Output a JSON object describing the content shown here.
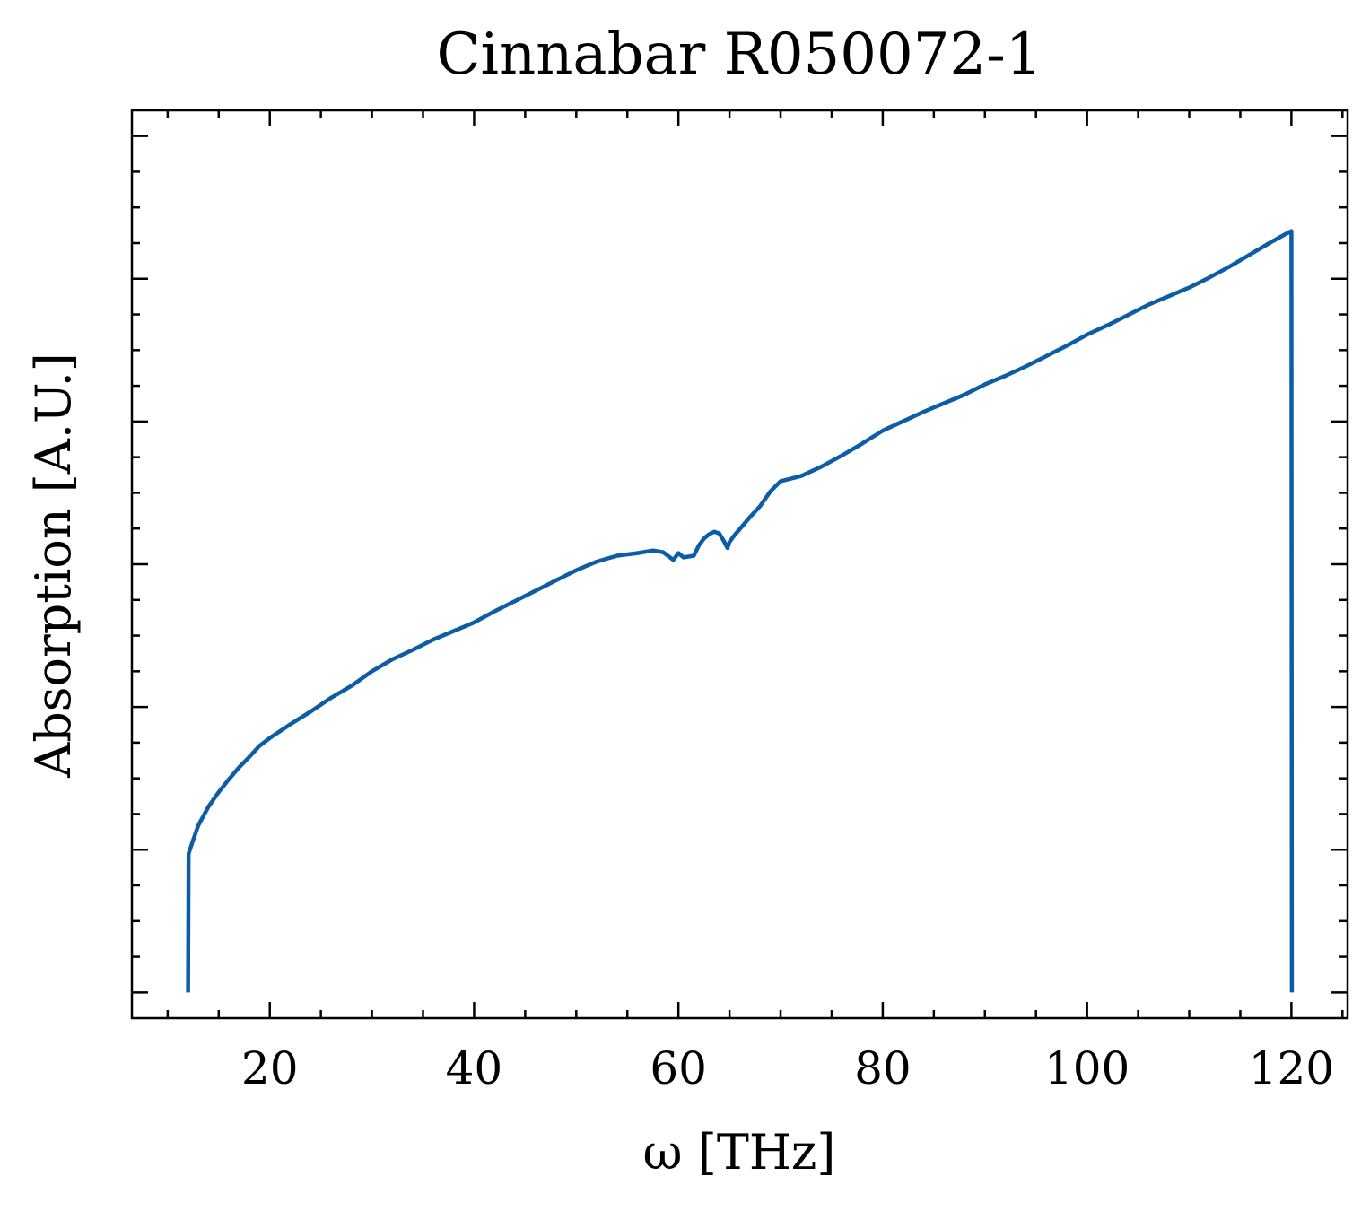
{
  "chart_data": {
    "type": "line",
    "title": "Cinnabar R050072-1",
    "xlabel": "ω [THz]",
    "ylabel": "Absorption [A.U.]",
    "xlim": [
      6.5,
      125.5
    ],
    "ylim": [
      -0.03,
      1.03
    ],
    "xticks": [
      20,
      40,
      60,
      80,
      100,
      120
    ],
    "xtick_labels": [
      "20",
      "40",
      "60",
      "80",
      "100",
      "120"
    ],
    "x_minor_step": 5,
    "yticks": [
      0.0,
      0.1667,
      0.3333,
      0.5,
      0.6667,
      0.8333,
      1.0
    ],
    "y_minor_count": 24,
    "y_tick_labels_shown": false,
    "grid": false,
    "line_color": "#0C5DA5",
    "series": [
      {
        "x": [
          12.0,
          12.05,
          12.5,
          13.0,
          14.0,
          15.0,
          16.0,
          17.0,
          18.0,
          19.0,
          20.0,
          22.0,
          24.0,
          26.0,
          28.0,
          30.0,
          32.0,
          34.0,
          36.0,
          38.0,
          40.0,
          42.0,
          44.0,
          46.0,
          48.0,
          50.0,
          52.0,
          54.0,
          56.0,
          57.5,
          58.5,
          59.5,
          60.0,
          60.5,
          61.5,
          62.0,
          62.5,
          63.0,
          63.5,
          64.0,
          64.5,
          64.8,
          65.0,
          65.5,
          66.0,
          67.0,
          68.0,
          69.0,
          70.0,
          72.0,
          74.0,
          76.0,
          78.0,
          80.0,
          82.0,
          84.0,
          86.0,
          88.0,
          90.0,
          92.0,
          94.0,
          96.0,
          98.0,
          100.0,
          102.0,
          104.0,
          106.0,
          108.0,
          110.0,
          112.0,
          114.0,
          116.0,
          118.0,
          119.5,
          120.0,
          120.05
        ],
        "y": [
          0.0,
          0.162,
          0.178,
          0.195,
          0.217,
          0.234,
          0.249,
          0.263,
          0.275,
          0.288,
          0.297,
          0.313,
          0.328,
          0.344,
          0.358,
          0.375,
          0.389,
          0.4,
          0.412,
          0.422,
          0.432,
          0.445,
          0.457,
          0.469,
          0.481,
          0.493,
          0.503,
          0.51,
          0.513,
          0.516,
          0.514,
          0.505,
          0.513,
          0.508,
          0.51,
          0.522,
          0.53,
          0.535,
          0.538,
          0.536,
          0.526,
          0.519,
          0.526,
          0.534,
          0.541,
          0.555,
          0.568,
          0.585,
          0.597,
          0.603,
          0.614,
          0.627,
          0.641,
          0.656,
          0.667,
          0.678,
          0.688,
          0.698,
          0.71,
          0.72,
          0.731,
          0.743,
          0.755,
          0.768,
          0.779,
          0.791,
          0.803,
          0.813,
          0.823,
          0.835,
          0.848,
          0.862,
          0.876,
          0.886,
          0.889,
          0.0
        ]
      }
    ]
  }
}
